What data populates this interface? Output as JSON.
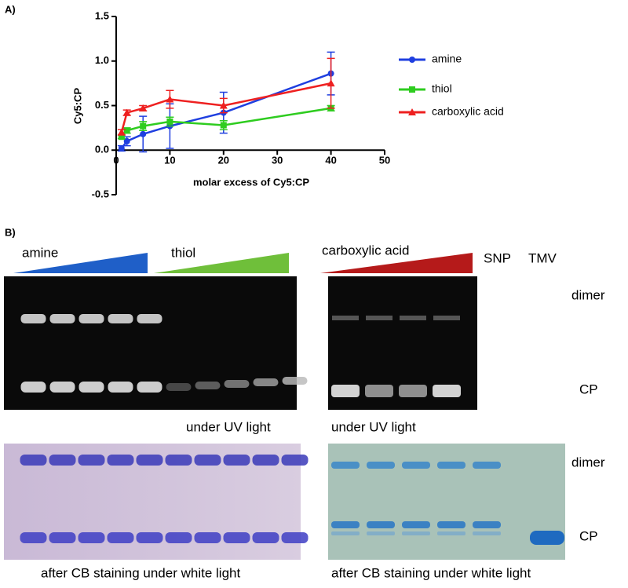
{
  "chart_data": {
    "type": "line",
    "panel_label": "A)",
    "xlabel": "molar excess of Cy5:CP",
    "ylabel": "Cy5:CP",
    "x": [
      1,
      2,
      5,
      10,
      20,
      40
    ],
    "xlim": [
      0,
      50
    ],
    "xticks": [
      0,
      10,
      20,
      30,
      40,
      50
    ],
    "ylim": [
      -0.5,
      1.5
    ],
    "yticks": [
      -0.5,
      {
        "value": 0,
        "label": "0.0"
      },
      0.5,
      {
        "value": 1,
        "label": "1.0"
      },
      1.5
    ],
    "legend": "right",
    "series": [
      {
        "name": "amine",
        "color": "#1f3fe0",
        "marker": "circle",
        "values": [
          0.02,
          0.1,
          0.18,
          0.27,
          0.42,
          0.86
        ],
        "errors": [
          0.03,
          0.05,
          0.2,
          0.25,
          0.23,
          0.24
        ]
      },
      {
        "name": "thiol",
        "color": "#2ecc1f",
        "marker": "square",
        "values": [
          0.15,
          0.22,
          0.27,
          0.32,
          0.28,
          0.47
        ],
        "errors": [
          0.02,
          0.03,
          0.05,
          0.05,
          0.05,
          0.03
        ]
      },
      {
        "name": "carboxylic acid",
        "color": "#ee2020",
        "marker": "triangle",
        "values": [
          0.2,
          0.42,
          0.47,
          0.57,
          0.5,
          0.75
        ],
        "errors": [
          0.03,
          0.03,
          0.03,
          0.1,
          0.08,
          0.28
        ]
      }
    ]
  },
  "panel_b": {
    "label": "B)",
    "lanes_left": [
      "amine",
      "thiol"
    ],
    "lanes_right": [
      "carboxylic acid",
      "SNP",
      "TMV"
    ],
    "uv_bands": [
      "dimer",
      "CP"
    ],
    "stain_bands": [
      "dimer",
      "CP"
    ],
    "uv_caption_left": "under UV light",
    "uv_caption_right": "under UV light",
    "stain_caption_left": "after CB staining under white light",
    "stain_caption_right": "after CB staining under white light"
  }
}
